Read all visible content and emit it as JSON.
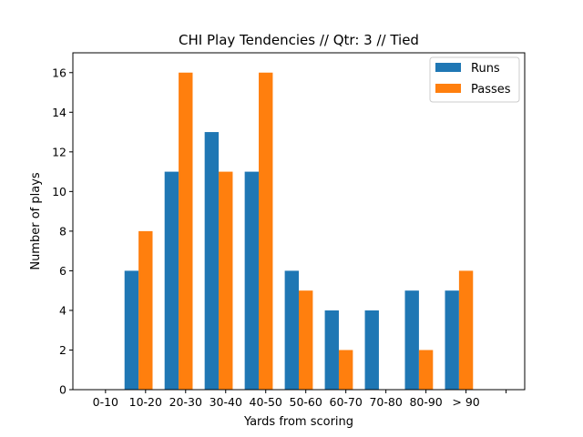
{
  "chart_data": {
    "type": "bar",
    "title": "CHI Play Tendencies // Qtr: 3 // Tied",
    "xlabel": "Yards from scoring",
    "ylabel": "Number of plays",
    "categories": [
      "0-10",
      "10-20",
      "20-30",
      "30-40",
      "40-50",
      "50-60",
      "60-70",
      "70-80",
      "80-90",
      "> 90",
      ""
    ],
    "series": [
      {
        "name": "Runs",
        "color": "#1f77b4",
        "values": [
          0,
          6,
          11,
          13,
          11,
          6,
          4,
          4,
          5,
          5,
          0
        ]
      },
      {
        "name": "Passes",
        "color": "#ff7f0e",
        "values": [
          0,
          8,
          16,
          11,
          16,
          5,
          2,
          0,
          2,
          6,
          0
        ]
      }
    ],
    "ylim": [
      0,
      17
    ],
    "yticks": [
      0,
      2,
      4,
      6,
      8,
      10,
      12,
      14,
      16
    ],
    "legend": "top-right",
    "grid": false
  }
}
